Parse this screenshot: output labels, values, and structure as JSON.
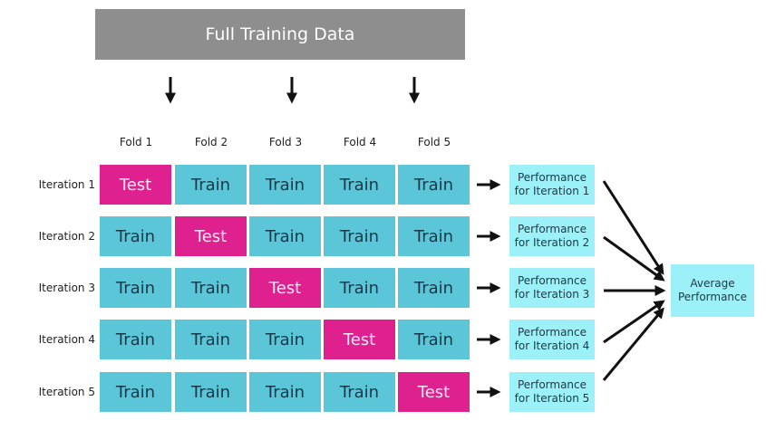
{
  "header": {
    "title": "Full Training Data"
  },
  "folds": [
    "Fold 1",
    "Fold 2",
    "Fold 3",
    "Fold 4",
    "Fold 5"
  ],
  "iterations": [
    {
      "label": "Iteration 1",
      "cells": [
        "Test",
        "Train",
        "Train",
        "Train",
        "Train"
      ],
      "performance": "Performance for Iteration 1"
    },
    {
      "label": "Iteration 2",
      "cells": [
        "Train",
        "Test",
        "Train",
        "Train",
        "Train"
      ],
      "performance": "Performance for Iteration 2"
    },
    {
      "label": "Iteration 3",
      "cells": [
        "Train",
        "Train",
        "Test",
        "Train",
        "Train"
      ],
      "performance": "Performance for Iteration 3"
    },
    {
      "label": "Iteration 4",
      "cells": [
        "Train",
        "Train",
        "Train",
        "Test",
        "Train"
      ],
      "performance": "Performance for Iteration 4"
    },
    {
      "label": "Iteration 5",
      "cells": [
        "Train",
        "Train",
        "Train",
        "Train",
        "Test"
      ],
      "performance": "Performance for Iteration 5"
    }
  ],
  "average": {
    "label": "Average Performance"
  },
  "colors": {
    "train": "#5bc6d8",
    "test": "#df2190",
    "performance": "#9cf0f8",
    "header": "#8e8e8e"
  }
}
